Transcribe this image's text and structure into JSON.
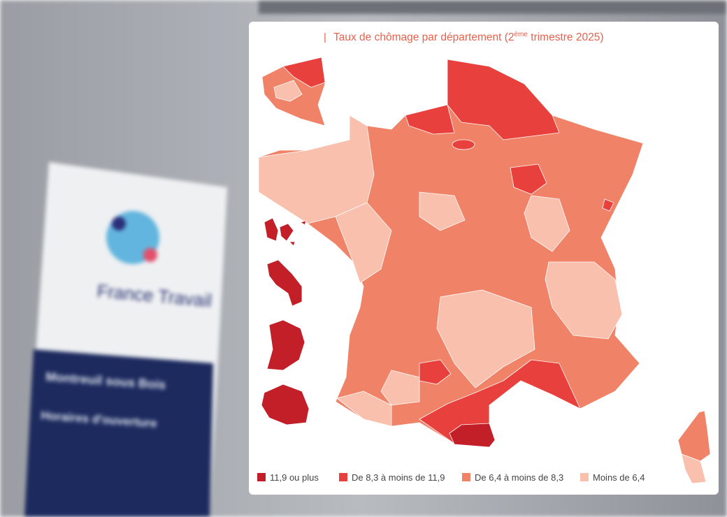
{
  "background": {
    "sign_brand": "France Travail",
    "sign_place": "Montreuil sous Bois",
    "sign_hours": "Horaires d'ouverture"
  },
  "map": {
    "title_prefix": "Taux de chômage par département (2",
    "title_sup": "ème",
    "title_suffix": " trimestre 2025)",
    "legend": [
      {
        "label": "11,9 ou plus",
        "color": "#c21f28"
      },
      {
        "label": "De 8,3 à moins de 11,9",
        "color": "#e8403c"
      },
      {
        "label": "De 6,4 à moins de 8,3",
        "color": "#f08268"
      },
      {
        "label": "Moins de 6,4",
        "color": "#f8c0ad"
      }
    ]
  }
}
